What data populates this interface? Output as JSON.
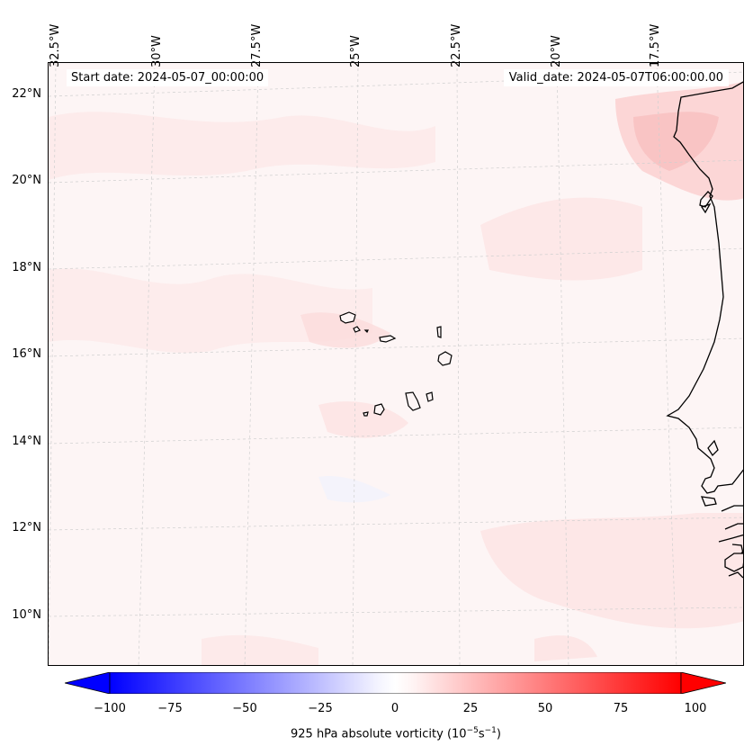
{
  "header": {
    "start_date": "Start date: 2024-05-07_00:00:00",
    "valid_date": "Valid_date: 2024-05-07T06:00:00.00"
  },
  "axes": {
    "lat_labels": [
      "22°N",
      "20°N",
      "18°N",
      "16°N",
      "14°N",
      "12°N",
      "10°N"
    ],
    "lon_labels": [
      "32.5°W",
      "30°W",
      "27.5°W",
      "25°W",
      "22.5°W",
      "20°W",
      "17.5°W"
    ]
  },
  "colorbar": {
    "ticks": [
      "−100",
      "−75",
      "−50",
      "−25",
      "0",
      "25",
      "50",
      "75",
      "100"
    ],
    "label_main": "925 hPa absolute vorticity (10",
    "label_exp1": "−5",
    "label_mid": "s",
    "label_exp2": "−1",
    "label_end": ")",
    "colormap": "bwr",
    "range": [
      -100,
      100
    ],
    "extend": "both"
  },
  "map": {
    "region": "Cape Verde Islands and West African coast",
    "land_color": "#fdf5f5",
    "coast_color": "#000000",
    "grid_color": "#c8c8c8"
  }
}
